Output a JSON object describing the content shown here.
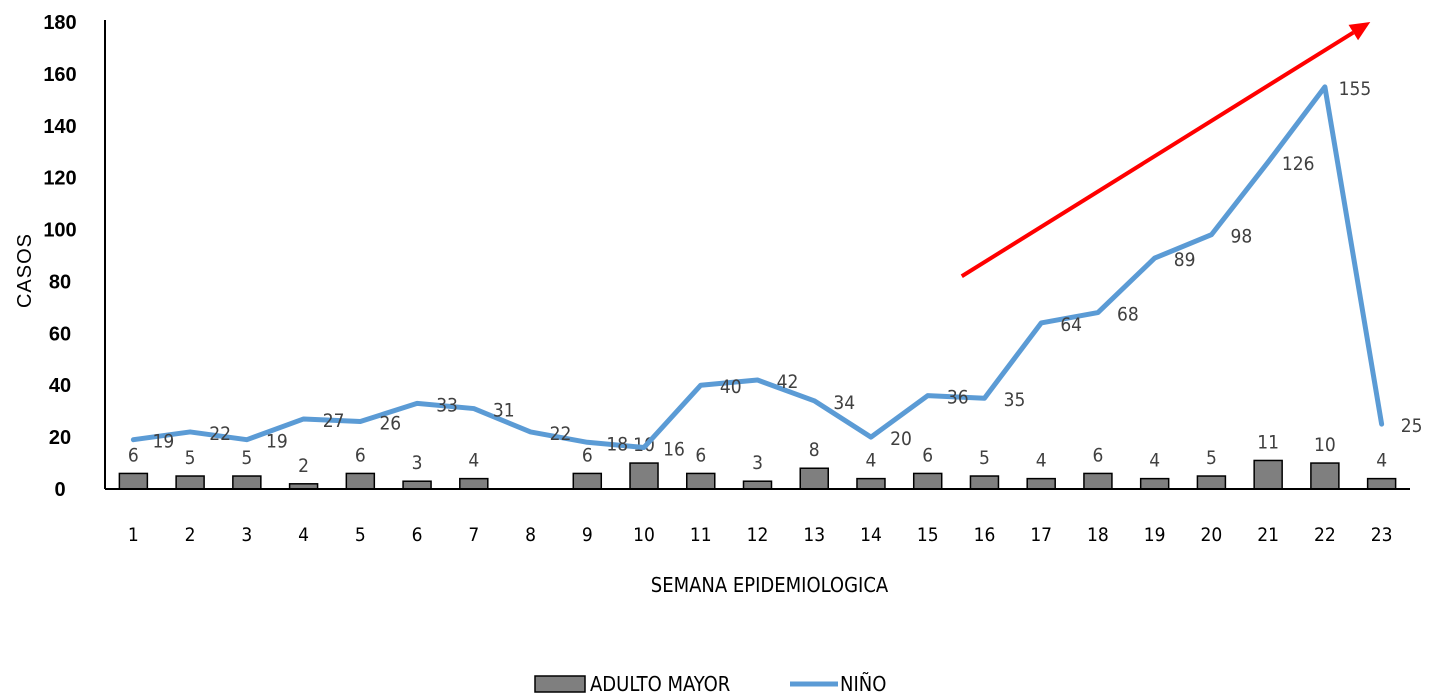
{
  "chart_data": {
    "type": "bar+line",
    "xlabel": "SEMANA EPIDEMIOLOGICA",
    "ylabel": "CASOS",
    "ylim": [
      0,
      180
    ],
    "yticks": [
      0,
      20,
      40,
      60,
      80,
      100,
      120,
      140,
      160,
      180
    ],
    "categories": [
      "1",
      "2",
      "3",
      "4",
      "5",
      "6",
      "7",
      "8",
      "9",
      "10",
      "11",
      "12",
      "13",
      "14",
      "15",
      "16",
      "17",
      "18",
      "19",
      "20",
      "21",
      "22",
      "23"
    ],
    "series": [
      {
        "name": "ADULTO MAYOR",
        "kind": "bar",
        "color": "#7f7f7f",
        "values": [
          6,
          5,
          5,
          2,
          6,
          3,
          4,
          null,
          6,
          10,
          6,
          3,
          8,
          4,
          6,
          5,
          4,
          6,
          4,
          5,
          11,
          10,
          4
        ]
      },
      {
        "name": "NIÑO",
        "kind": "line",
        "color": "#5b9bd5",
        "values": [
          19,
          22,
          19,
          27,
          26,
          33,
          31,
          22,
          18,
          16,
          40,
          42,
          34,
          20,
          36,
          35,
          64,
          68,
          89,
          98,
          126,
          155,
          25
        ]
      }
    ],
    "legend_position": "bottom",
    "annotation": {
      "kind": "trend-arrow",
      "color": "#ff0000",
      "from": {
        "x": 15.6,
        "y": 82
      },
      "to": {
        "x": 22.8,
        "y": 180
      }
    }
  }
}
